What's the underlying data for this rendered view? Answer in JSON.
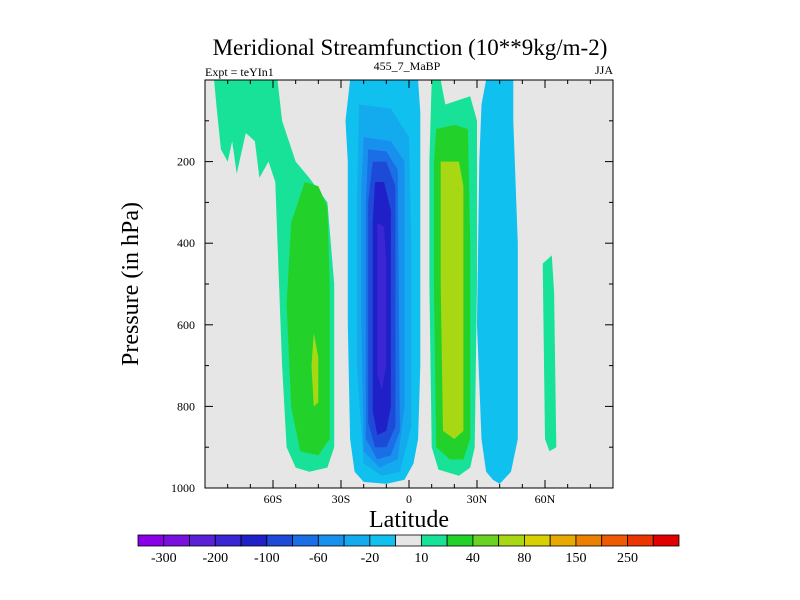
{
  "chart_data": {
    "type": "contour",
    "title": "Meridional Streamfunction (10**9kg/m-2)",
    "experiment_label": "Expt = teYIn1",
    "center_label": "455_7_MaBP",
    "season_label": "JJA",
    "xlabel": "Latitude",
    "ylabel": "Pressure (in hPa)",
    "xlim": [
      -90,
      90
    ],
    "ylim": [
      1000,
      0
    ],
    "x_ticks": [
      {
        "value": -60,
        "label": "60S"
      },
      {
        "value": -30,
        "label": "30S"
      },
      {
        "value": 0,
        "label": "0"
      },
      {
        "value": 30,
        "label": "30N"
      },
      {
        "value": 60,
        "label": "60N"
      }
    ],
    "y_ticks": [
      {
        "value": 200,
        "label": "200"
      },
      {
        "value": 400,
        "label": "400"
      },
      {
        "value": 600,
        "label": "600"
      },
      {
        "value": 800,
        "label": "800"
      },
      {
        "value": 1000,
        "label": "1000"
      }
    ],
    "background_color": "#e6e6e6",
    "colorbar": {
      "colors": [
        "#8a00e8",
        "#7a10e0",
        "#5a20d8",
        "#3a26d2",
        "#2020c8",
        "#1e4ad8",
        "#1a6ee6",
        "#1890ee",
        "#14aaee",
        "#10c0ee",
        "#e6e6e6",
        "#18e298",
        "#22d22a",
        "#6ad222",
        "#a8d814",
        "#d8d000",
        "#e8aa00",
        "#ec8000",
        "#ee5a00",
        "#ec3400",
        "#e00000"
      ],
      "labels": [
        {
          "after_box": 1,
          "text": "-300"
        },
        {
          "after_box": 3,
          "text": "-200"
        },
        {
          "after_box": 5,
          "text": "-100"
        },
        {
          "after_box": 7,
          "text": "-60"
        },
        {
          "after_box": 9,
          "text": "-20"
        },
        {
          "after_box": 11,
          "text": "10"
        },
        {
          "after_box": 13,
          "text": "40"
        },
        {
          "after_box": 15,
          "text": "80"
        },
        {
          "after_box": 17,
          "text": "150"
        },
        {
          "after_box": 19,
          "text": "250"
        }
      ]
    },
    "regions": [
      {
        "name": "cyan-north-column",
        "color": "#10c0ee",
        "points": [
          [
            34,
            0
          ],
          [
            46,
            0
          ],
          [
            46,
            100
          ],
          [
            48,
            400
          ],
          [
            48,
            880
          ],
          [
            45,
            960
          ],
          [
            40,
            990
          ],
          [
            37,
            980
          ],
          [
            34,
            960
          ],
          [
            32,
            880
          ],
          [
            30,
            600
          ],
          [
            31,
            200
          ],
          [
            32,
            60
          ]
        ]
      },
      {
        "name": "teal-north-strip",
        "color": "#18e298",
        "points": [
          [
            63,
            430
          ],
          [
            64,
            520
          ],
          [
            65,
            900
          ],
          [
            62,
            910
          ],
          [
            60,
            880
          ],
          [
            59,
            450
          ]
        ]
      },
      {
        "name": "blue-center-column",
        "color": "#10c0ee",
        "points": [
          [
            -26,
            0
          ],
          [
            4,
            0
          ],
          [
            5,
            80
          ],
          [
            5,
            200
          ],
          [
            5,
            700
          ],
          [
            4,
            880
          ],
          [
            2,
            940
          ],
          [
            -2,
            980
          ],
          [
            -10,
            990
          ],
          [
            -20,
            985
          ],
          [
            -24,
            960
          ],
          [
            -26,
            880
          ],
          [
            -27,
            600
          ],
          [
            -27,
            200
          ],
          [
            -28,
            100
          ]
        ]
      },
      {
        "name": "blue-center-2",
        "color": "#14aaee",
        "points": [
          [
            -22,
            60
          ],
          [
            -8,
            70
          ],
          [
            0,
            140
          ],
          [
            1,
            400
          ],
          [
            1,
            850
          ],
          [
            -4,
            960
          ],
          [
            -12,
            970
          ],
          [
            -20,
            940
          ],
          [
            -23,
            700
          ],
          [
            -23,
            300
          ]
        ]
      },
      {
        "name": "blue-center-3",
        "color": "#1890ee",
        "points": [
          [
            -20,
            140
          ],
          [
            -8,
            150
          ],
          [
            -2,
            200
          ],
          [
            -2,
            800
          ],
          [
            -5,
            930
          ],
          [
            -13,
            950
          ],
          [
            -20,
            910
          ],
          [
            -21,
            600
          ],
          [
            -21,
            260
          ]
        ]
      },
      {
        "name": "blue-center-4",
        "color": "#1a6ee6",
        "points": [
          [
            -18,
            170
          ],
          [
            -10,
            175
          ],
          [
            -5,
            220
          ],
          [
            -4,
            860
          ],
          [
            -8,
            920
          ],
          [
            -14,
            930
          ],
          [
            -19,
            880
          ],
          [
            -19,
            300
          ]
        ]
      },
      {
        "name": "blue-center-5",
        "color": "#1e4ad8",
        "points": [
          [
            -16,
            200
          ],
          [
            -10,
            200
          ],
          [
            -6,
            260
          ],
          [
            -6,
            850
          ],
          [
            -10,
            900
          ],
          [
            -15,
            900
          ],
          [
            -18,
            840
          ],
          [
            -18,
            300
          ]
        ]
      },
      {
        "name": "blue-center-core",
        "color": "#2020c8",
        "points": [
          [
            -15,
            250
          ],
          [
            -11,
            250
          ],
          [
            -8,
            320
          ],
          [
            -8,
            800
          ],
          [
            -10,
            860
          ],
          [
            -14,
            870
          ],
          [
            -16,
            810
          ],
          [
            -16,
            350
          ]
        ]
      },
      {
        "name": "blue-center-core2",
        "color": "#3a26d2",
        "points": [
          [
            -14,
            350
          ],
          [
            -11,
            360
          ],
          [
            -10,
            450
          ],
          [
            -10,
            700
          ],
          [
            -12,
            760
          ],
          [
            -14,
            720
          ],
          [
            -14,
            450
          ]
        ]
      },
      {
        "name": "teal-south-arm",
        "color": "#18e298",
        "points": [
          [
            -86,
            0
          ],
          [
            -58,
            0
          ],
          [
            -56,
            100
          ],
          [
            -50,
            200
          ],
          [
            -44,
            240
          ],
          [
            -36,
            300
          ],
          [
            -33,
            500
          ],
          [
            -33,
            900
          ],
          [
            -36,
            950
          ],
          [
            -44,
            960
          ],
          [
            -50,
            950
          ],
          [
            -54,
            900
          ],
          [
            -56,
            700
          ],
          [
            -58,
            400
          ],
          [
            -59,
            250
          ],
          [
            -62,
            200
          ],
          [
            -66,
            240
          ],
          [
            -68,
            150
          ],
          [
            -72,
            130
          ],
          [
            -76,
            230
          ],
          [
            -78,
            150
          ],
          [
            -80,
            200
          ],
          [
            -83,
            170
          ],
          [
            -85,
            60
          ]
        ]
      },
      {
        "name": "green-south-blob",
        "color": "#22d22a",
        "points": [
          [
            -46,
            250
          ],
          [
            -40,
            260
          ],
          [
            -36,
            310
          ],
          [
            -35,
            500
          ],
          [
            -35,
            880
          ],
          [
            -40,
            920
          ],
          [
            -48,
            910
          ],
          [
            -52,
            800
          ],
          [
            -54,
            550
          ],
          [
            -52,
            350
          ]
        ]
      },
      {
        "name": "lime-south-spot",
        "color": "#a8d814",
        "points": [
          [
            -42,
            620
          ],
          [
            -40,
            680
          ],
          [
            -40,
            790
          ],
          [
            -42,
            800
          ],
          [
            -43,
            700
          ]
        ]
      },
      {
        "name": "teal-30n-strip",
        "color": "#18e298",
        "points": [
          [
            10,
            0
          ],
          [
            14,
            0
          ],
          [
            16,
            60
          ],
          [
            27,
            40
          ],
          [
            30,
            100
          ],
          [
            30,
            500
          ],
          [
            29,
            900
          ],
          [
            27,
            950
          ],
          [
            22,
            970
          ],
          [
            13,
            955
          ],
          [
            10,
            900
          ],
          [
            9,
            500
          ],
          [
            9,
            200
          ]
        ]
      },
      {
        "name": "green-30n-core",
        "color": "#22d22a",
        "points": [
          [
            12,
            120
          ],
          [
            20,
            110
          ],
          [
            26,
            120
          ],
          [
            27,
            400
          ],
          [
            27,
            880
          ],
          [
            24,
            930
          ],
          [
            18,
            930
          ],
          [
            12,
            900
          ],
          [
            11,
            500
          ],
          [
            11,
            200
          ]
        ]
      },
      {
        "name": "lime-30n-core",
        "color": "#a8d814",
        "points": [
          [
            14,
            200
          ],
          [
            22,
            200
          ],
          [
            24,
            260
          ],
          [
            24,
            860
          ],
          [
            20,
            880
          ],
          [
            15,
            860
          ],
          [
            14,
            500
          ]
        ]
      }
    ]
  }
}
